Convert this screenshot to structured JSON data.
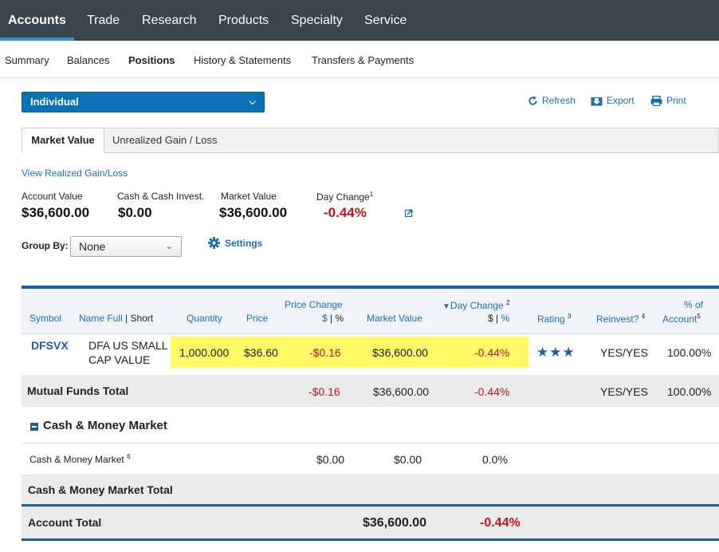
{
  "topnav": {
    "tabs": [
      "Accounts",
      "Trade",
      "Research",
      "Products",
      "Specialty",
      "Service"
    ]
  },
  "subnav": {
    "items": [
      "Summary",
      "Balances",
      "Positions",
      "History & Statements",
      "Transfers & Payments"
    ]
  },
  "account_selector": {
    "value": "Individual"
  },
  "toolbar": {
    "refresh": "Refresh",
    "export": "Export",
    "print": "Print"
  },
  "view_tabs": {
    "market_value": "Market Value",
    "unrealized": "Unrealized Gain / Loss"
  },
  "realized_link": "View Realized Gain/Loss",
  "summary": {
    "account_value_label": "Account Value",
    "account_value": "$36,600.00",
    "cash_label": "Cash & Cash Invest.",
    "cash": "$0.00",
    "market_value_label": "Market Value",
    "market_value": "$36,600.00",
    "day_change_label": "Day Change",
    "day_change_footnote": "1",
    "day_change": "-0.44%"
  },
  "group_by": {
    "label": "Group By:",
    "value": "None"
  },
  "settings_label": "Settings",
  "table": {
    "headers": {
      "symbol": "Symbol",
      "name_full": "Name Full",
      "name_short": "Short",
      "quantity": "Quantity",
      "price": "Price",
      "price_change": "Price Change",
      "dollar": "$",
      "percent": "%",
      "market_value": "Market Value",
      "day_change": "Day Change",
      "day_change_fn": "2",
      "rating": "Rating",
      "rating_fn": "3",
      "reinvest": "Reinvest?",
      "reinvest_fn": "4",
      "pct_of": "% of",
      "account": "Account",
      "account_fn": "5"
    },
    "position": {
      "symbol": "DFSVX",
      "name_line1": "DFA US SMALL",
      "name_line2": "CAP VALUE",
      "quantity": "1,000.000",
      "price": "$36.60",
      "price_change": "-$0.16",
      "market_value": "$36,600.00",
      "day_change": "-0.44%",
      "rating": "★★★",
      "reinvest": "YES/YES",
      "pct_account": "100.00%"
    },
    "mutual_funds_total": {
      "label": "Mutual Funds Total",
      "price_change": "-$0.16",
      "market_value": "$36,600.00",
      "day_change": "-0.44%",
      "reinvest": "YES/YES",
      "pct_account": "100.00%"
    },
    "cash_section": {
      "label": "Cash & Money Market"
    },
    "cash_row": {
      "label": "Cash & Money Market",
      "footnote": "6",
      "price_change": "$0.00",
      "market_value": "$0.00",
      "day_change": "0.0%"
    },
    "cash_total": {
      "label": "Cash & Money Market Total"
    },
    "account_total": {
      "label": "Account Total",
      "market_value": "$36,600.00",
      "day_change": "-0.44%"
    }
  },
  "colors": {
    "nav_bg": "#3a444d",
    "accent_blue": "#0b73b5",
    "negative": "#c0141c",
    "highlight": "#fff966"
  }
}
